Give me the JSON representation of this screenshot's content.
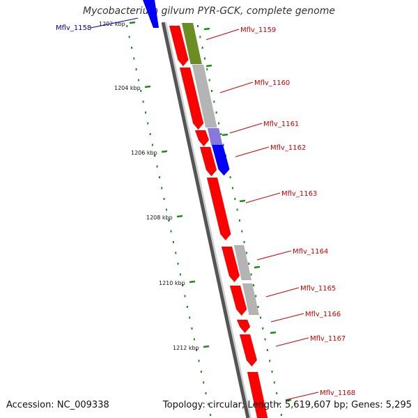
{
  "title": "Mycobacterium gilvum PYR-GCK, complete genome",
  "accession": "Accession: NC_009338",
  "stats": "Topology: circular; Length: 5,619,607 bp; Genes: 5,295",
  "colors": {
    "forward": "#ff0000",
    "reverse": "#0000ff",
    "other": "#b4b4b4",
    "olive": "#6b8e23",
    "purple": "#8877dd",
    "tick": "#1a8a1a",
    "label_fwd": "#cc0000",
    "label_rev": "#0000aa"
  },
  "ticks": [
    {
      "label": "1202 kbp"
    },
    {
      "label": "1204 kbp"
    },
    {
      "label": "1206 kbp"
    },
    {
      "label": "1208 kbp"
    },
    {
      "label": "1210 kbp"
    },
    {
      "label": "1212 kbp"
    }
  ],
  "genes": [
    {
      "name": "Mflv_1158",
      "strand": "reverse"
    },
    {
      "name": "Mflv_1159",
      "strand": "forward"
    },
    {
      "name": "Mflv_1160",
      "strand": "forward"
    },
    {
      "name": "Mflv_1161",
      "strand": "forward"
    },
    {
      "name": "Mflv_1162",
      "strand": "forward"
    },
    {
      "name": "Mflv_1163",
      "strand": "forward"
    },
    {
      "name": "Mflv_1164",
      "strand": "forward"
    },
    {
      "name": "Mflv_1165",
      "strand": "forward"
    },
    {
      "name": "Mflv_1166",
      "strand": "forward"
    },
    {
      "name": "Mflv_1167",
      "strand": "forward"
    },
    {
      "name": "Mflv_1168",
      "strand": "forward"
    }
  ]
}
